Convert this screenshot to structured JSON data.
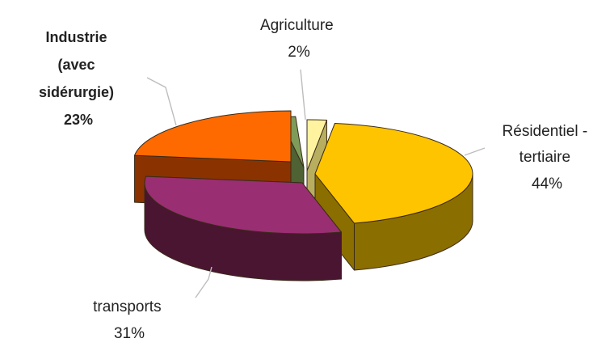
{
  "chart_data": {
    "type": "pie",
    "style": "3d-exploded",
    "title": "",
    "slices": [
      {
        "name": "Agriculture",
        "label_lines": [
          "Agriculture"
        ],
        "value_label": "2%",
        "value": 2,
        "color": "#FFF3A0",
        "side_color": "#B8AE60",
        "bold": false
      },
      {
        "name": "Résidentiel - tertiaire",
        "label_lines": [
          "Résidentiel -",
          "tertiaire"
        ],
        "value_label": "44%",
        "value": 44,
        "color": "#FFC400",
        "side_color": "#8B6E00",
        "bold": false
      },
      {
        "name": "transports",
        "label_lines": [
          "transports"
        ],
        "value_label": "31%",
        "value": 31,
        "color": "#9A2E72",
        "side_color": "#4A1530",
        "bold": false
      },
      {
        "name": "Industrie (avec sidérurgie)",
        "label_lines": [
          "Industrie",
          "(avec",
          "sidérurgie)"
        ],
        "value_label": "23%",
        "value": 23,
        "color": "#FF6A00",
        "side_color": "#8A3300",
        "bold": true
      }
    ],
    "extra_slice_color": "#7E9B5A",
    "extra_slice_side_color": "#4E6234"
  }
}
